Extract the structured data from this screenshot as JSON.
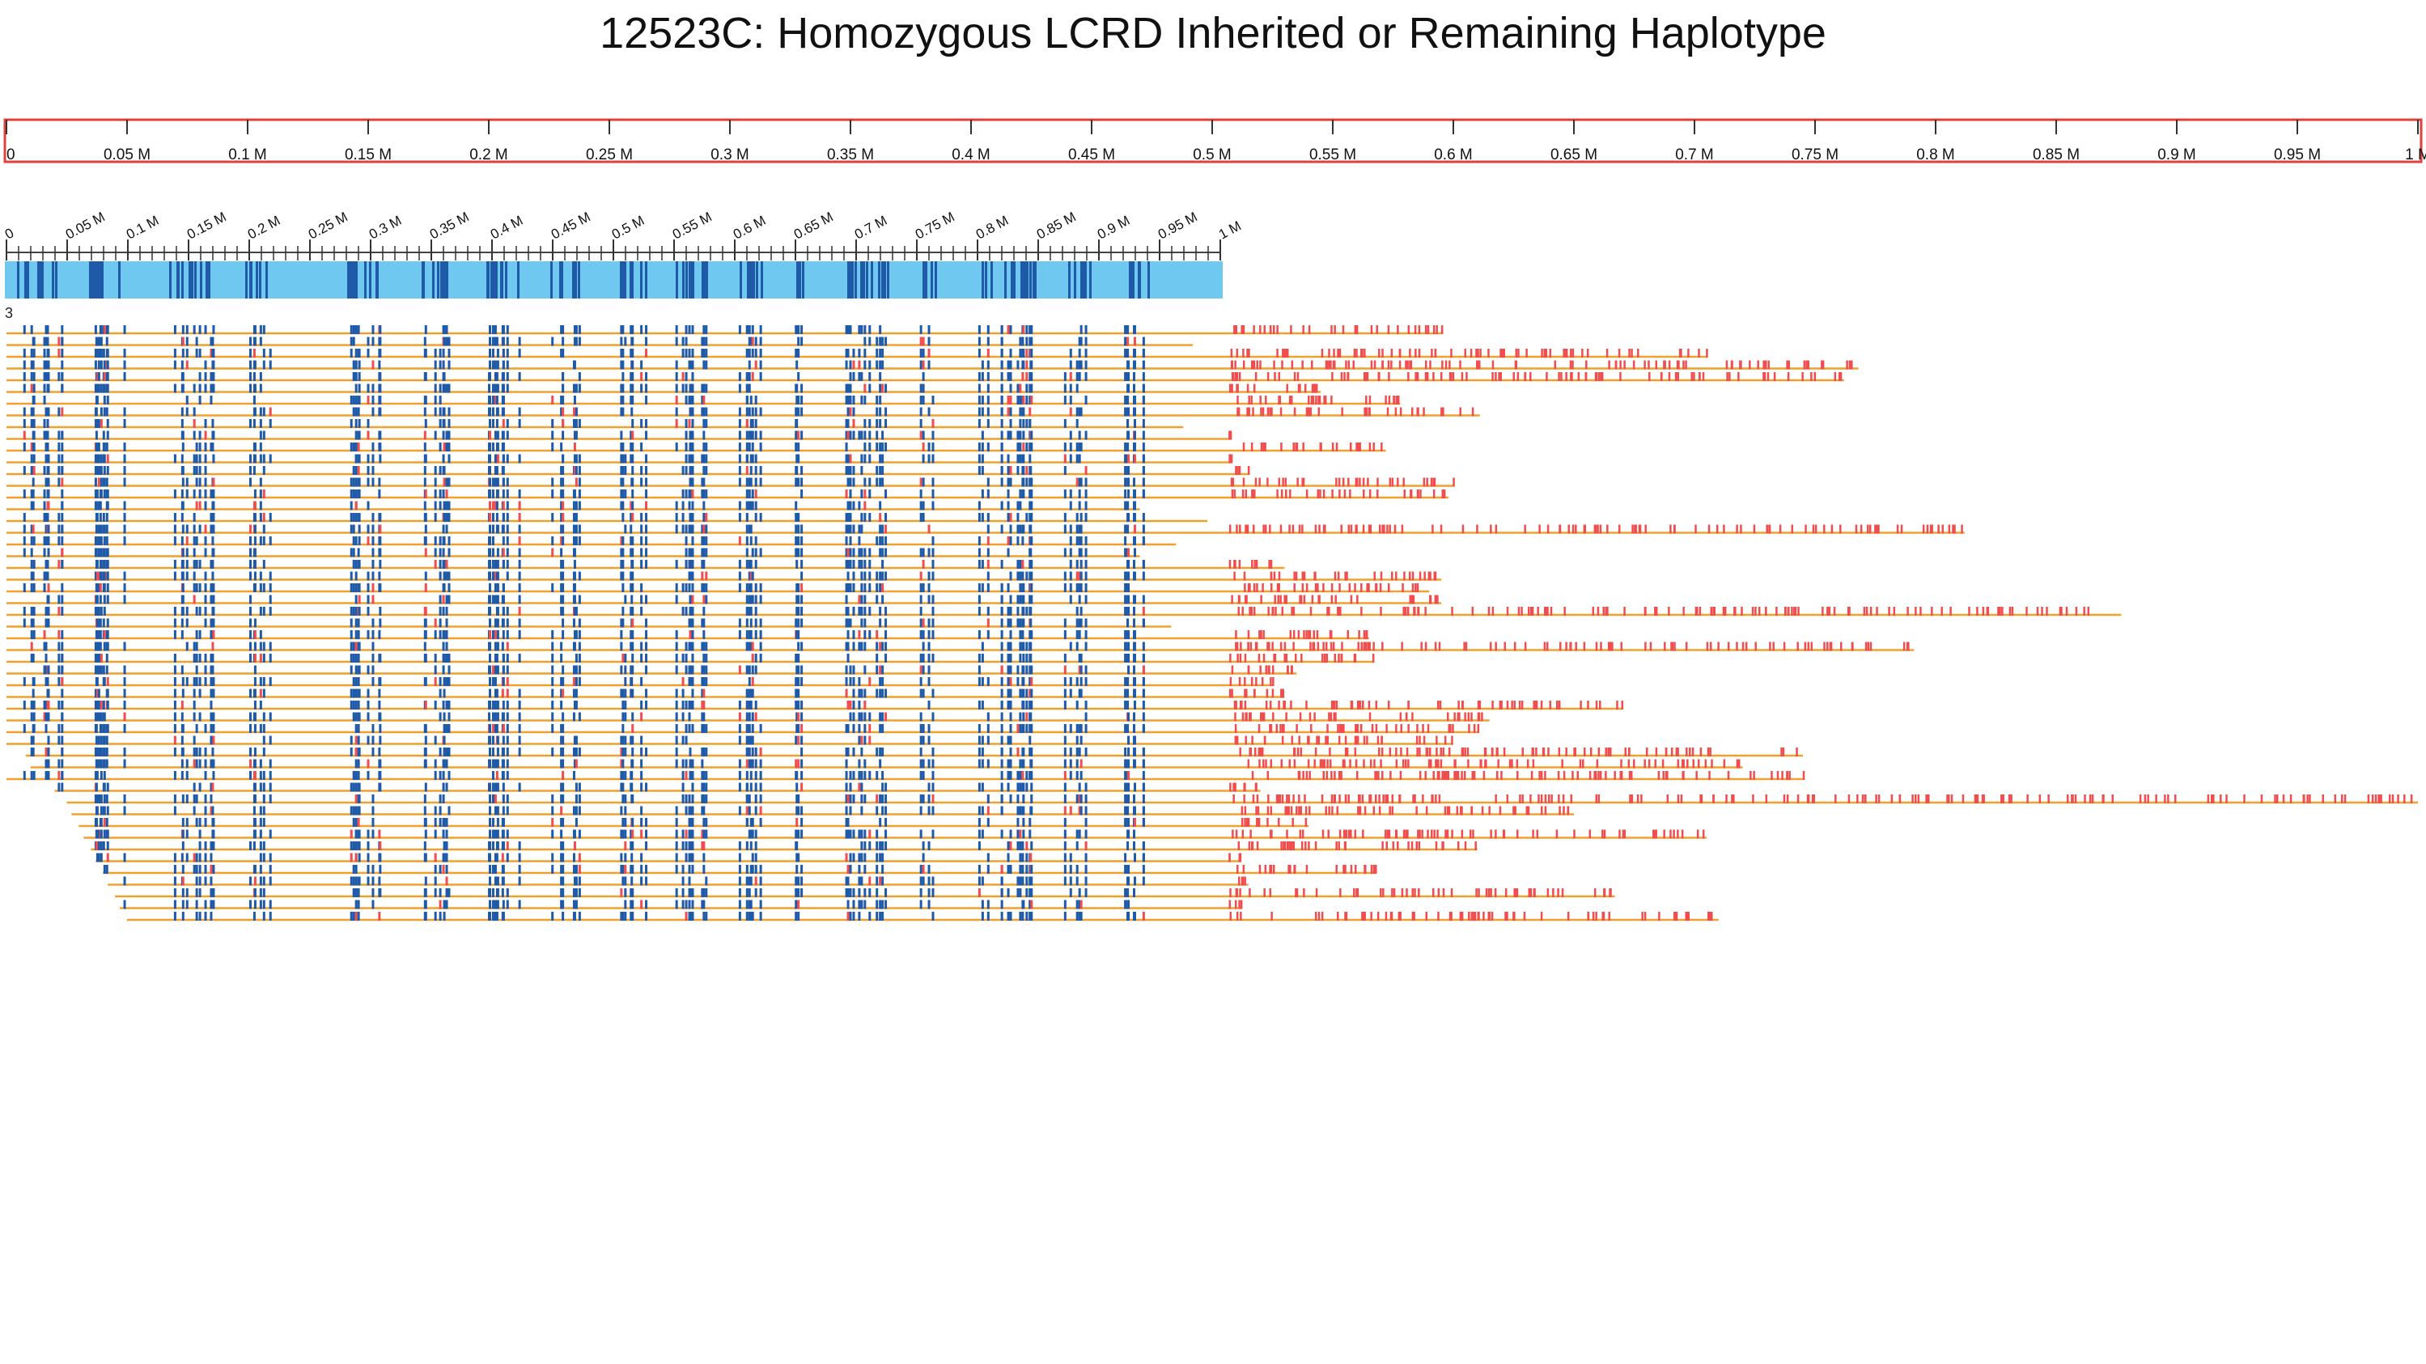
{
  "title": "12523C: Homozygous LCRD Inherited or Remaining Haplotype",
  "colors": {
    "background": "#ffffff",
    "ruler_red": "#e0413a",
    "reference_bar": "#6ec8ef",
    "reference_mark": "#1e5aa8",
    "read_line": "#f2a02e",
    "match_mark": "#1e5aa8",
    "mismatch_mark": "#f04e4e"
  },
  "top_ruler": {
    "ticks": [
      "0",
      "0.05 M",
      "0.1 M",
      "0.15 M",
      "0.2 M",
      "0.25 M",
      "0.3 M",
      "0.35 M",
      "0.4 M",
      "0.45 M",
      "0.5 M",
      "0.55 M",
      "0.6 M",
      "0.65 M",
      "0.7 M",
      "0.75 M",
      "0.8 M",
      "0.85 M",
      "0.9 M",
      "0.95 M",
      "1 M"
    ]
  },
  "reference_ruler": {
    "ticks": [
      "0",
      "0.05 M",
      "0.1 M",
      "0.15 M",
      "0.2 M",
      "0.25 M",
      "0.3 M",
      "0.35 M",
      "0.4 M",
      "0.45 M",
      "0.5 M",
      "0.55 M",
      "0.6 M",
      "0.65 M",
      "0.7 M",
      "0.75 M",
      "0.8 M",
      "0.85 M",
      "0.9 M",
      "0.95 M",
      "1 M"
    ]
  },
  "track_label": "3",
  "chart_data": {
    "type": "table",
    "axis_max": 1.0,
    "unit": "M",
    "reference_length": 0.5,
    "reads": [
      {
        "start": 0.0,
        "end": 0.595
      },
      {
        "start": 0.0,
        "end": 0.492
      },
      {
        "start": 0.0,
        "end": 0.705
      },
      {
        "start": 0.0,
        "end": 0.768
      },
      {
        "start": 0.0,
        "end": 0.762
      },
      {
        "start": 0.0,
        "end": 0.545
      },
      {
        "start": 0.0,
        "end": 0.578
      },
      {
        "start": 0.0,
        "end": 0.611
      },
      {
        "start": 0.0,
        "end": 0.488
      },
      {
        "start": 0.0,
        "end": 0.508
      },
      {
        "start": 0.0,
        "end": 0.572
      },
      {
        "start": 0.0,
        "end": 0.508
      },
      {
        "start": 0.0,
        "end": 0.515
      },
      {
        "start": 0.0,
        "end": 0.6
      },
      {
        "start": 0.0,
        "end": 0.598
      },
      {
        "start": 0.0,
        "end": 0.47
      },
      {
        "start": 0.0,
        "end": 0.498
      },
      {
        "start": 0.0,
        "end": 0.812
      },
      {
        "start": 0.0,
        "end": 0.485
      },
      {
        "start": 0.0,
        "end": 0.47
      },
      {
        "start": 0.0,
        "end": 0.53
      },
      {
        "start": 0.0,
        "end": 0.595
      },
      {
        "start": 0.0,
        "end": 0.59
      },
      {
        "start": 0.0,
        "end": 0.595
      },
      {
        "start": 0.0,
        "end": 0.877
      },
      {
        "start": 0.0,
        "end": 0.483
      },
      {
        "start": 0.0,
        "end": 0.565
      },
      {
        "start": 0.0,
        "end": 0.791
      },
      {
        "start": 0.0,
        "end": 0.567
      },
      {
        "start": 0.0,
        "end": 0.535
      },
      {
        "start": 0.0,
        "end": 0.525
      },
      {
        "start": 0.0,
        "end": 0.53
      },
      {
        "start": 0.0,
        "end": 0.67
      },
      {
        "start": 0.0,
        "end": 0.615
      },
      {
        "start": 0.0,
        "end": 0.61
      },
      {
        "start": 0.0,
        "end": 0.6
      },
      {
        "start": 0.008,
        "end": 0.745
      },
      {
        "start": 0.01,
        "end": 0.72
      },
      {
        "start": 0.0,
        "end": 0.745
      },
      {
        "start": 0.02,
        "end": 0.52
      },
      {
        "start": 0.025,
        "end": 1.0
      },
      {
        "start": 0.027,
        "end": 0.65
      },
      {
        "start": 0.03,
        "end": 0.54
      },
      {
        "start": 0.032,
        "end": 0.705
      },
      {
        "start": 0.035,
        "end": 0.61
      },
      {
        "start": 0.037,
        "end": 0.512
      },
      {
        "start": 0.04,
        "end": 0.568
      },
      {
        "start": 0.042,
        "end": 0.515
      },
      {
        "start": 0.045,
        "end": 0.667
      },
      {
        "start": 0.047,
        "end": 0.512
      },
      {
        "start": 0.05,
        "end": 0.71
      }
    ]
  }
}
